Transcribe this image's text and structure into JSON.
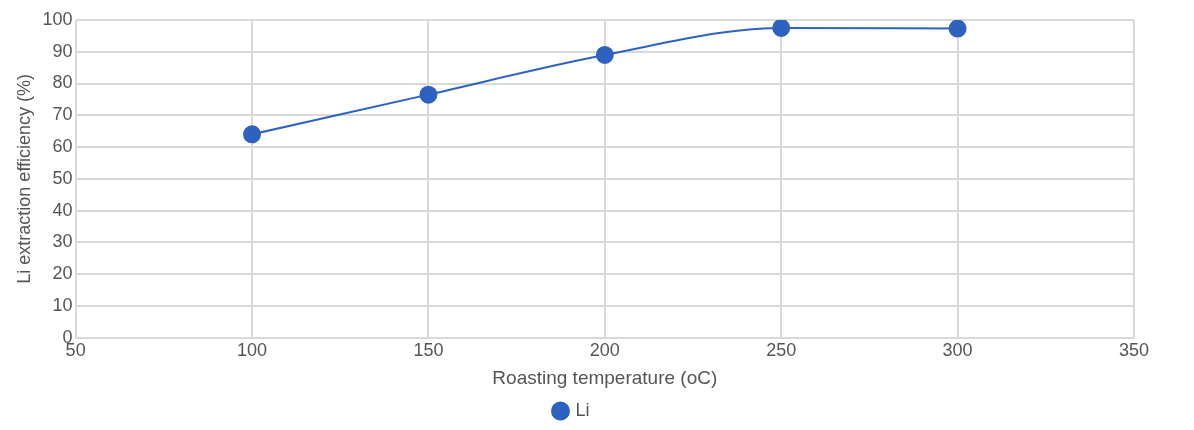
{
  "chart_data": {
    "type": "line",
    "xlabel": "Roasting temperature (oC)",
    "ylabel": "Li extraction efficiency (%)",
    "x": [
      100,
      150,
      200,
      250,
      300
    ],
    "series": [
      {
        "name": "Li",
        "color": "#2e62c0",
        "values": [
          64,
          76.5,
          89,
          97.5,
          97.3
        ]
      }
    ],
    "xlim": [
      50,
      350
    ],
    "xticks": [
      50,
      100,
      150,
      200,
      250,
      300,
      350
    ],
    "ylim": [
      0,
      100
    ],
    "yticks": [
      0,
      10,
      20,
      30,
      40,
      50,
      60,
      70,
      80,
      90,
      100
    ],
    "grid": true,
    "legend": "bottom",
    "marker": "circle",
    "line_style": "solid"
  }
}
